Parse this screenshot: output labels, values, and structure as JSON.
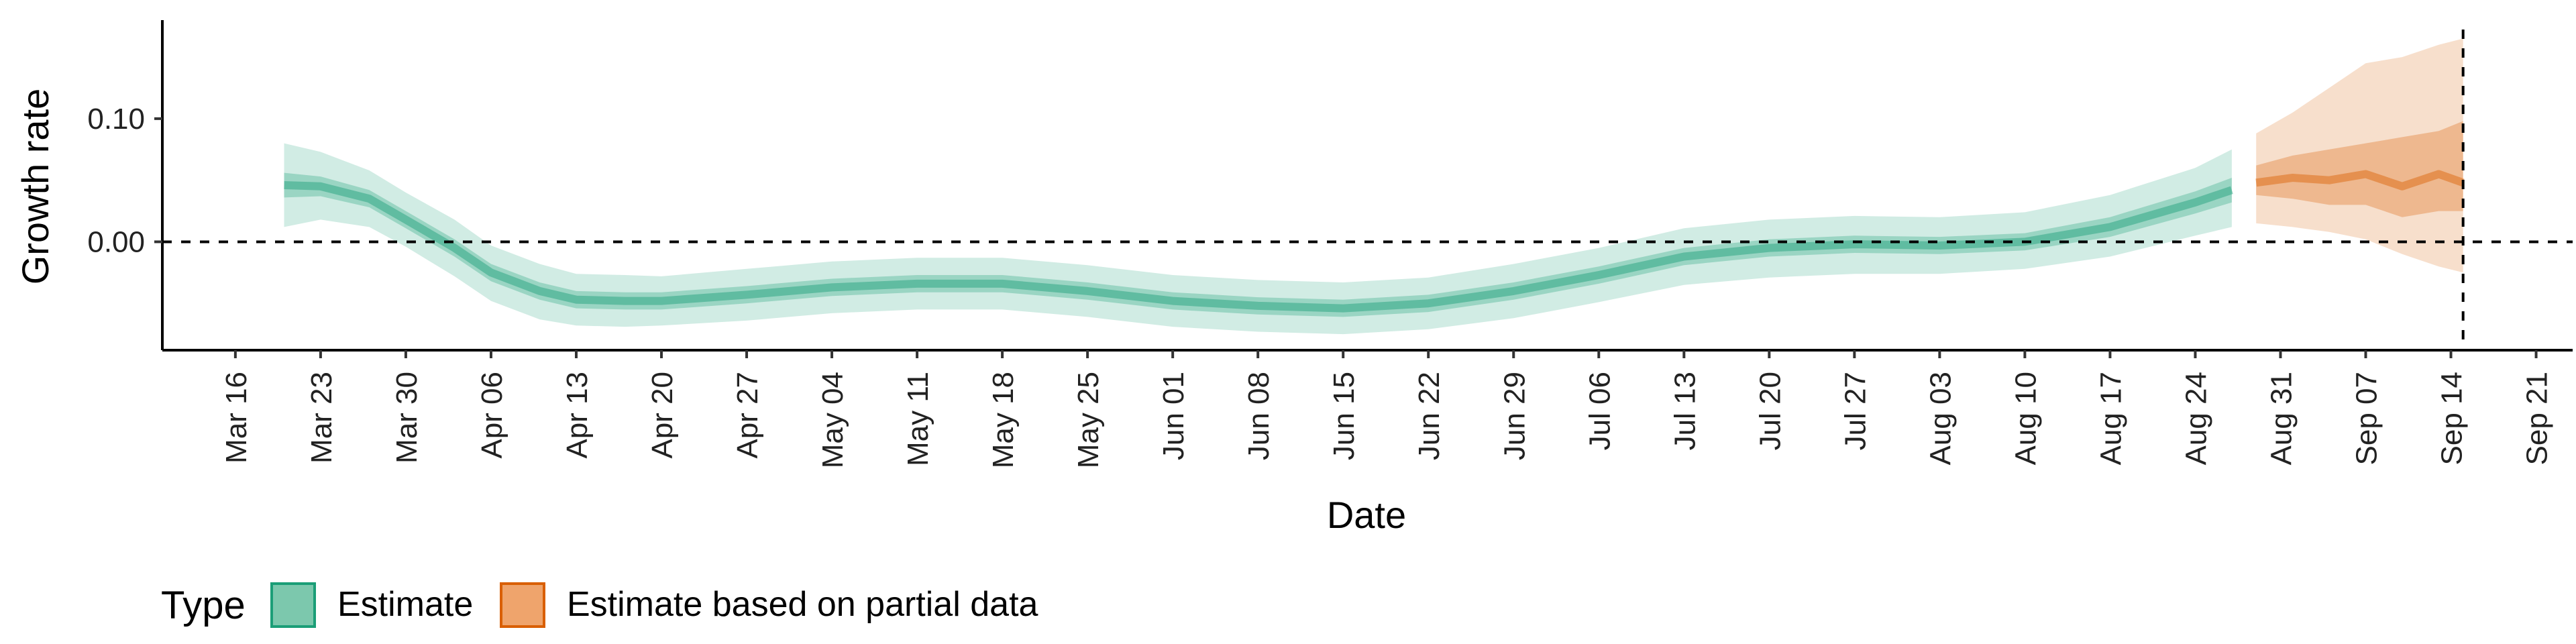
{
  "chart_data": {
    "type": "area",
    "xlabel": "Date",
    "ylabel": "Growth rate",
    "x_ticks": [
      "Mar 16",
      "Mar 23",
      "Mar 30",
      "Apr 06",
      "Apr 13",
      "Apr 20",
      "Apr 27",
      "May 04",
      "May 11",
      "May 18",
      "May 25",
      "Jun 01",
      "Jun 08",
      "Jun 15",
      "Jun 22",
      "Jun 29",
      "Jul 06",
      "Jul 13",
      "Jul 20",
      "Jul 27",
      "Aug 03",
      "Aug 10",
      "Aug 17",
      "Aug 24",
      "Aug 31",
      "Sep 07",
      "Sep 14",
      "Sep 21"
    ],
    "y_ticks": [
      "0.00",
      "0.10"
    ],
    "y_tick_values": [
      0.0,
      0.1
    ],
    "ylim": [
      -0.088,
      0.18
    ],
    "xlim": [
      "2020-03-10",
      "2020-09-24"
    ],
    "reference_lines": {
      "horizontal_y": 0.0,
      "vertical_x": "2020-09-15",
      "style": "dashed"
    },
    "legend": {
      "title": "Type",
      "position": "bottom-left",
      "entries": [
        {
          "label": "Estimate",
          "fill": "#7cc8ad",
          "border": "#1b9e77"
        },
        {
          "label": "Estimate based on partial data",
          "fill": "#efa46c",
          "border": "#d95f02"
        }
      ]
    },
    "series": [
      {
        "name": "Estimate",
        "color": "#1b9e77",
        "x": [
          "2020-03-20",
          "2020-03-23",
          "2020-03-27",
          "2020-03-30",
          "2020-04-03",
          "2020-04-06",
          "2020-04-10",
          "2020-04-13",
          "2020-04-17",
          "2020-04-20",
          "2020-04-27",
          "2020-05-04",
          "2020-05-11",
          "2020-05-18",
          "2020-05-25",
          "2020-06-01",
          "2020-06-08",
          "2020-06-15",
          "2020-06-22",
          "2020-06-29",
          "2020-07-06",
          "2020-07-13",
          "2020-07-20",
          "2020-07-27",
          "2020-08-03",
          "2020-08-10",
          "2020-08-17",
          "2020-08-24",
          "2020-08-27"
        ],
        "median": [
          0.046,
          0.045,
          0.035,
          0.018,
          -0.005,
          -0.025,
          -0.04,
          -0.047,
          -0.048,
          -0.048,
          -0.043,
          -0.037,
          -0.034,
          -0.034,
          -0.04,
          -0.048,
          -0.052,
          -0.054,
          -0.05,
          -0.04,
          -0.027,
          -0.012,
          -0.005,
          -0.002,
          -0.003,
          0.0,
          0.012,
          0.032,
          0.042
        ],
        "lower_50": [
          0.036,
          0.037,
          0.028,
          0.011,
          -0.012,
          -0.032,
          -0.047,
          -0.054,
          -0.055,
          -0.055,
          -0.05,
          -0.044,
          -0.041,
          -0.041,
          -0.047,
          -0.055,
          -0.059,
          -0.061,
          -0.057,
          -0.047,
          -0.034,
          -0.019,
          -0.012,
          -0.009,
          -0.01,
          -0.007,
          0.004,
          0.023,
          0.032
        ],
        "upper_50": [
          0.056,
          0.053,
          0.042,
          0.025,
          0.002,
          -0.018,
          -0.033,
          -0.04,
          -0.041,
          -0.041,
          -0.036,
          -0.03,
          -0.027,
          -0.027,
          -0.033,
          -0.041,
          -0.045,
          -0.047,
          -0.043,
          -0.033,
          -0.02,
          -0.005,
          0.002,
          0.005,
          0.004,
          0.007,
          0.02,
          0.041,
          0.052
        ],
        "lower_90": [
          0.012,
          0.018,
          0.012,
          -0.004,
          -0.028,
          -0.048,
          -0.063,
          -0.068,
          -0.069,
          -0.068,
          -0.064,
          -0.058,
          -0.055,
          -0.055,
          -0.061,
          -0.069,
          -0.073,
          -0.075,
          -0.071,
          -0.062,
          -0.049,
          -0.035,
          -0.029,
          -0.026,
          -0.026,
          -0.022,
          -0.012,
          0.005,
          0.012
        ],
        "upper_90": [
          0.08,
          0.073,
          0.058,
          0.04,
          0.018,
          -0.003,
          -0.018,
          -0.026,
          -0.027,
          -0.028,
          -0.022,
          -0.016,
          -0.013,
          -0.013,
          -0.019,
          -0.027,
          -0.031,
          -0.033,
          -0.029,
          -0.018,
          -0.005,
          0.011,
          0.018,
          0.021,
          0.02,
          0.024,
          0.038,
          0.06,
          0.075
        ]
      },
      {
        "name": "Estimate based on partial data",
        "color": "#d95f02",
        "x": [
          "2020-08-29",
          "2020-09-01",
          "2020-09-04",
          "2020-09-07",
          "2020-09-10",
          "2020-09-13",
          "2020-09-15"
        ],
        "median": [
          0.048,
          0.052,
          0.05,
          0.055,
          0.045,
          0.055,
          0.048
        ],
        "lower_50": [
          0.038,
          0.035,
          0.03,
          0.03,
          0.02,
          0.025,
          0.025
        ],
        "upper_50": [
          0.062,
          0.07,
          0.075,
          0.08,
          0.085,
          0.09,
          0.098
        ],
        "lower_90": [
          0.015,
          0.012,
          0.008,
          0.002,
          -0.01,
          -0.02,
          -0.025
        ],
        "upper_90": [
          0.088,
          0.105,
          0.125,
          0.145,
          0.15,
          0.16,
          0.165
        ]
      }
    ]
  }
}
